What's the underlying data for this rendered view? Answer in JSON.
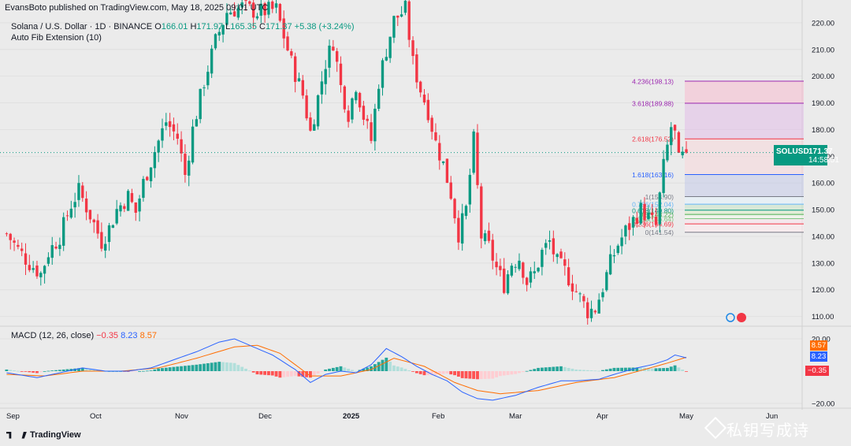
{
  "header": {
    "publisher": "EvansBoto published on TradingView.com, May 18, 2025 09:01 UTC",
    "symbol": "Solana / U.S. Dollar · 1D · BINANCE",
    "ohlc": {
      "o_label": "O",
      "o": "166.01",
      "h_label": "H",
      "h": "171.97",
      "l_label": "L",
      "l": "165.35",
      "c_label": "C",
      "c": "171.37",
      "chg": "+5.38 (+3.24%)"
    },
    "indicator": "Auto Fib Extension (10)"
  },
  "price_tag": {
    "symbol": "SOLUSD",
    "price": "171.37",
    "countdown": "14:58:51"
  },
  "macd": {
    "label": "MACD (12, 26, close)",
    "hist": "−0.35",
    "macd": "8.23",
    "signal": "8.57"
  },
  "footer": {
    "brand": "TradingView"
  },
  "watermark": "私钥写成诗",
  "colors": {
    "up": "#089981",
    "down": "#f23645",
    "macd_line": "#2962ff",
    "signal_line": "#ff6d00",
    "bg": "#ebebeb"
  },
  "chart_data": {
    "type": "candlestick",
    "price_axis": {
      "ticks": [
        220,
        210,
        200,
        190,
        180,
        170,
        160,
        150,
        140,
        130,
        120,
        110
      ],
      "range": [
        106,
        222
      ]
    },
    "macd_axis": {
      "ticks": [
        20,
        0,
        -20
      ],
      "range": [
        -22,
        24
      ]
    },
    "x_labels": [
      "Sep",
      "Oct",
      "Nov",
      "Dec",
      "2025",
      "Feb",
      "Mar",
      "Apr",
      "May",
      "Jun"
    ],
    "last_price": 171.37,
    "fib_levels": [
      {
        "label": "4.236(198.13)",
        "value": 198.13,
        "color": "#9c27b0"
      },
      {
        "label": "3.618(189.88)",
        "value": 189.88,
        "color": "#9c27b0"
      },
      {
        "label": "2.618(176.52)",
        "value": 176.52,
        "color": "#f23645"
      },
      {
        "label": "1.618(163.16)",
        "value": 163.16,
        "color": "#2962ff"
      },
      {
        "label": "1(154.90)",
        "value": 154.9,
        "color": "#787b86"
      },
      {
        "label": "0.786(152.04)",
        "value": 152.04,
        "color": "#64b5f6"
      },
      {
        "label": "0.618(149.80)",
        "value": 149.8,
        "color": "#089981"
      },
      {
        "label": "0.5(148.22)",
        "value": 148.22,
        "color": "#4caf50"
      },
      {
        "label": "0.382(146.64)",
        "value": 146.64,
        "color": "#81c784"
      },
      {
        "label": "0.236(144.69)",
        "value": 144.69,
        "color": "#f23645"
      },
      {
        "label": "0(141.54)",
        "value": 141.54,
        "color": "#787b86"
      }
    ],
    "close_path": [
      [
        0,
        141
      ],
      [
        3,
        135
      ],
      [
        6,
        130
      ],
      [
        9,
        126
      ],
      [
        11,
        134
      ],
      [
        14,
        140
      ],
      [
        17,
        152
      ],
      [
        19,
        157
      ],
      [
        22,
        148
      ],
      [
        25,
        138
      ],
      [
        27,
        143
      ],
      [
        29,
        150
      ],
      [
        32,
        155
      ],
      [
        34,
        149
      ],
      [
        36,
        160
      ],
      [
        39,
        172
      ],
      [
        42,
        183
      ],
      [
        45,
        177
      ],
      [
        47,
        163
      ],
      [
        49,
        180
      ],
      [
        52,
        198
      ],
      [
        55,
        213
      ],
      [
        58,
        224
      ],
      [
        62,
        226
      ],
      [
        66,
        224
      ],
      [
        71,
        225
      ],
      [
        75,
        205
      ],
      [
        78,
        193
      ],
      [
        80,
        179
      ],
      [
        82,
        192
      ],
      [
        84,
        205
      ],
      [
        86,
        213
      ],
      [
        88,
        196
      ],
      [
        90,
        186
      ],
      [
        92,
        197
      ],
      [
        94,
        185
      ],
      [
        96,
        176
      ],
      [
        98,
        198
      ],
      [
        100,
        210
      ],
      [
        102,
        221
      ],
      [
        105,
        225
      ],
      [
        107,
        205
      ],
      [
        109,
        195
      ],
      [
        111,
        187
      ],
      [
        113,
        175
      ],
      [
        115,
        167
      ],
      [
        117,
        156
      ],
      [
        119,
        141
      ],
      [
        121,
        150
      ],
      [
        123,
        176
      ],
      [
        125,
        140
      ],
      [
        127,
        136
      ],
      [
        129,
        128
      ],
      [
        131,
        122
      ],
      [
        133,
        130
      ],
      [
        135,
        132
      ],
      [
        137,
        123
      ],
      [
        139,
        126
      ],
      [
        141,
        134
      ],
      [
        143,
        138
      ],
      [
        145,
        130
      ],
      [
        147,
        127
      ],
      [
        149,
        122
      ],
      [
        151,
        117
      ],
      [
        153,
        112
      ],
      [
        155,
        113
      ],
      [
        157,
        121
      ],
      [
        159,
        130
      ],
      [
        161,
        137
      ],
      [
        163,
        142
      ],
      [
        165,
        146
      ],
      [
        167,
        150
      ],
      [
        169,
        147
      ],
      [
        171,
        144
      ],
      [
        173,
        166
      ],
      [
        175,
        181
      ],
      [
        176,
        178
      ],
      [
        177,
        168
      ],
      [
        179,
        171.37
      ]
    ],
    "macd_line": [
      [
        0,
        -1
      ],
      [
        8,
        -4
      ],
      [
        14,
        -1
      ],
      [
        20,
        2
      ],
      [
        26,
        0
      ],
      [
        32,
        0
      ],
      [
        38,
        2
      ],
      [
        44,
        7
      ],
      [
        50,
        12
      ],
      [
        56,
        18
      ],
      [
        60,
        20
      ],
      [
        64,
        16
      ],
      [
        70,
        10
      ],
      [
        76,
        1
      ],
      [
        80,
        -7
      ],
      [
        84,
        -2
      ],
      [
        88,
        0
      ],
      [
        92,
        -1
      ],
      [
        96,
        4
      ],
      [
        100,
        14
      ],
      [
        104,
        9
      ],
      [
        108,
        3
      ],
      [
        112,
        -2
      ],
      [
        116,
        -6
      ],
      [
        120,
        -13
      ],
      [
        124,
        -17
      ],
      [
        128,
        -18
      ],
      [
        134,
        -15
      ],
      [
        140,
        -10
      ],
      [
        146,
        -6
      ],
      [
        150,
        -6
      ],
      [
        156,
        -5
      ],
      [
        160,
        -2
      ],
      [
        166,
        2
      ],
      [
        170,
        4
      ],
      [
        174,
        7
      ],
      [
        176,
        10
      ],
      [
        179,
        8.23
      ]
    ],
    "signal_line": [
      [
        0,
        -2
      ],
      [
        10,
        -3
      ],
      [
        20,
        0
      ],
      [
        30,
        0
      ],
      [
        40,
        2
      ],
      [
        50,
        8
      ],
      [
        60,
        15
      ],
      [
        66,
        16
      ],
      [
        72,
        11
      ],
      [
        80,
        -3
      ],
      [
        88,
        -3
      ],
      [
        96,
        1
      ],
      [
        102,
        8
      ],
      [
        110,
        3
      ],
      [
        118,
        -7
      ],
      [
        124,
        -12
      ],
      [
        130,
        -14
      ],
      [
        140,
        -12
      ],
      [
        150,
        -7
      ],
      [
        160,
        -4
      ],
      [
        168,
        1
      ],
      [
        174,
        5
      ],
      [
        179,
        8.57
      ]
    ]
  }
}
